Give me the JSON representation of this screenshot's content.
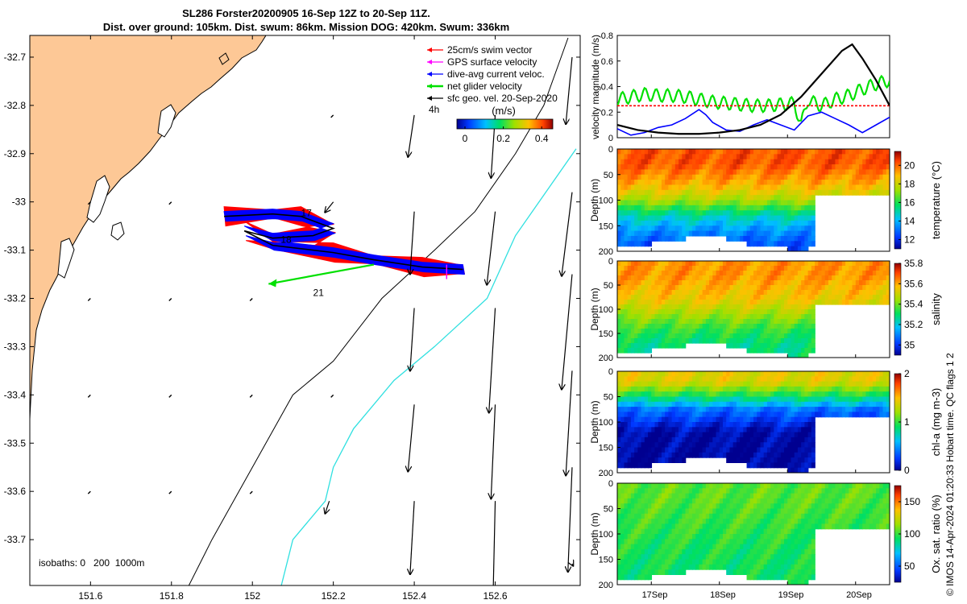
{
  "title": {
    "line1": "SL286 Forster20200905 16-Sep 12Z to 20-Sep 11Z.",
    "line2": "Dist. over ground: 105km. Dist. swum: 86km. Mission DOG: 420km. Swum: 336km"
  },
  "chart_data": [
    {
      "type": "map",
      "x_ticks": [
        "151.6",
        "151.8",
        "152",
        "152.2",
        "152.4",
        "152.6"
      ],
      "x_values": [
        151.6,
        151.8,
        152.0,
        152.2,
        152.4,
        152.6
      ],
      "y_ticks": [
        "-32.7",
        "-32.8",
        "-32.9",
        "-33",
        "-33.1",
        "-33.2",
        "-33.3",
        "-33.4",
        "-33.5",
        "-33.6",
        "-33.7"
      ],
      "y_values": [
        -32.7,
        -32.8,
        -32.9,
        -33.0,
        -33.1,
        -33.2,
        -33.3,
        -33.4,
        -33.5,
        -33.6,
        -33.7
      ],
      "xlim": [
        151.45,
        152.81
      ],
      "ylim": [
        -33.795,
        -32.655
      ],
      "legend": [
        {
          "label": "25cm/s swim vector",
          "color": "#ff0000"
        },
        {
          "label": "GPS surface velocity",
          "color": "#ff00ff"
        },
        {
          "label": "dive-avg current veloc.",
          "color": "#0000ff"
        },
        {
          "label": "net glider velocity",
          "color": "#00e000"
        },
        {
          "label": "sfc geo. vel. 20-Sep-2020",
          "color": "#000000"
        }
      ],
      "time_label": "4h",
      "colorbar": {
        "label": "(m/s)",
        "ticks": [
          "0",
          "0.2",
          "0.4"
        ],
        "values": [
          0,
          0.2,
          0.4
        ],
        "range": [
          0,
          0.5
        ]
      },
      "day_labels": [
        {
          "text": "17",
          "lon": 152.12,
          "lat": -33.03
        },
        {
          "text": "18",
          "lon": 152.07,
          "lat": -33.085
        },
        {
          "text": "21",
          "lon": 152.15,
          "lat": -33.195
        }
      ],
      "isobath_label": "isobaths: 0   200  1000m",
      "glider_track": [
        [
          151.93,
          -33.03
        ],
        [
          152.05,
          -33.025
        ],
        [
          152.12,
          -33.03
        ],
        [
          152.2,
          -33.055
        ],
        [
          152.15,
          -33.07
        ],
        [
          152.05,
          -33.075
        ],
        [
          151.98,
          -33.06
        ],
        [
          152.05,
          -33.09
        ],
        [
          152.2,
          -33.105
        ],
        [
          152.3,
          -33.12
        ],
        [
          152.42,
          -33.135
        ],
        [
          152.52,
          -33.14
        ]
      ],
      "isobath_200m": [
        [
          152.07,
          -33.8
        ],
        [
          152.1,
          -33.7
        ],
        [
          152.18,
          -33.62
        ],
        [
          152.2,
          -33.55
        ],
        [
          152.25,
          -33.47
        ],
        [
          152.35,
          -33.37
        ],
        [
          152.45,
          -33.3
        ],
        [
          152.58,
          -33.2
        ],
        [
          152.65,
          -33.07
        ],
        [
          152.8,
          -32.89
        ]
      ],
      "isobath_1000m": [
        [
          151.84,
          -33.8
        ],
        [
          151.9,
          -33.7
        ],
        [
          152.0,
          -33.55
        ],
        [
          152.1,
          -33.4
        ],
        [
          152.2,
          -33.33
        ],
        [
          152.32,
          -33.2
        ],
        [
          152.45,
          -33.1
        ],
        [
          152.55,
          -33.02
        ],
        [
          152.65,
          -32.9
        ],
        [
          152.72,
          -32.8
        ],
        [
          152.78,
          -32.66
        ]
      ],
      "sfc_vectors": [
        {
          "lon": 152.4,
          "lat": -32.82,
          "u": -0.03,
          "v": -0.2
        },
        {
          "lon": 152.6,
          "lat": -32.82,
          "u": -0.02,
          "v": -0.3
        },
        {
          "lon": 152.79,
          "lat": -32.7,
          "u": -0.03,
          "v": -0.32
        },
        {
          "lon": 152.4,
          "lat": -33.02,
          "u": -0.02,
          "v": -0.3
        },
        {
          "lon": 152.6,
          "lat": -33.02,
          "u": -0.04,
          "v": -0.35
        },
        {
          "lon": 152.79,
          "lat": -32.98,
          "u": -0.05,
          "v": -0.4
        },
        {
          "lon": 152.2,
          "lat": -33.0,
          "u": -0.04,
          "v": -0.05
        },
        {
          "lon": 152.4,
          "lat": -33.22,
          "u": -0.02,
          "v": -0.3
        },
        {
          "lon": 152.6,
          "lat": -33.22,
          "u": -0.03,
          "v": -0.5
        },
        {
          "lon": 152.79,
          "lat": -33.15,
          "u": -0.05,
          "v": -0.55
        },
        {
          "lon": 152.4,
          "lat": -33.42,
          "u": -0.03,
          "v": -0.32
        },
        {
          "lon": 152.6,
          "lat": -33.42,
          "u": -0.02,
          "v": -0.45
        },
        {
          "lon": 152.79,
          "lat": -33.35,
          "u": -0.03,
          "v": -0.5
        },
        {
          "lon": 152.4,
          "lat": -33.62,
          "u": -0.02,
          "v": -0.35
        },
        {
          "lon": 152.6,
          "lat": -33.62,
          "u": -0.01,
          "v": -0.45
        },
        {
          "lon": 152.79,
          "lat": -33.55,
          "u": -0.02,
          "v": -0.5
        },
        {
          "lon": 152.19,
          "lat": -33.62,
          "u": -0.02,
          "v": -0.06
        },
        {
          "lon": 152.79,
          "lat": -33.75,
          "u": 0.005,
          "v": -0.01
        }
      ],
      "stub_vectors": [
        [
          151.6,
          -33.0
        ],
        [
          151.8,
          -33.0
        ],
        [
          151.6,
          -33.2
        ],
        [
          151.8,
          -33.2
        ],
        [
          152.0,
          -33.2
        ],
        [
          151.6,
          -33.4
        ],
        [
          151.8,
          -33.4
        ],
        [
          152.0,
          -33.4
        ],
        [
          152.2,
          -33.4
        ],
        [
          151.6,
          -33.6
        ],
        [
          151.8,
          -33.6
        ],
        [
          152.0,
          -33.6
        ],
        [
          152.2,
          -32.82
        ]
      ]
    },
    {
      "type": "line",
      "ylabel": "velocity magnitude (m/s)",
      "y_ticks": [
        "0",
        "0.2",
        "0.4",
        "0.6",
        "0.8"
      ],
      "ylim": [
        0,
        0.8
      ],
      "xlim": [
        16.5,
        20.5
      ],
      "series": [
        {
          "color": "#00e000",
          "x": [
            16.5,
            16.7,
            16.9,
            17.1,
            17.3,
            17.5,
            17.7,
            17.9,
            18.1,
            18.3,
            18.5,
            18.7,
            18.9,
            19.1,
            19.2,
            19.3,
            19.4,
            19.5,
            19.7,
            19.9,
            20.1,
            20.3,
            20.5
          ],
          "values": [
            0.3,
            0.32,
            0.34,
            0.33,
            0.33,
            0.32,
            0.3,
            0.28,
            0.27,
            0.26,
            0.25,
            0.25,
            0.26,
            0.27,
            0.1,
            0.3,
            0.27,
            0.25,
            0.3,
            0.33,
            0.38,
            0.42,
            0.45
          ]
        },
        {
          "color": "#0000ff",
          "x": [
            16.5,
            16.7,
            16.9,
            17.1,
            17.3,
            17.5,
            17.7,
            17.8,
            17.9,
            18.1,
            18.3,
            18.5,
            18.7,
            18.9,
            19.1,
            19.3,
            19.5,
            19.7,
            19.9,
            20.1,
            20.3,
            20.5
          ],
          "values": [
            0.07,
            0.02,
            0.04,
            0.08,
            0.1,
            0.15,
            0.22,
            0.18,
            0.12,
            0.06,
            0.05,
            0.1,
            0.14,
            0.1,
            0.06,
            0.17,
            0.2,
            0.15,
            0.1,
            0.04,
            0.1,
            0.16
          ]
        },
        {
          "color": "#ff0000",
          "x": [
            16.5,
            20.5
          ],
          "values": [
            0.25,
            0.25
          ]
        },
        {
          "color": "#000000",
          "x": [
            16.5,
            16.8,
            17.1,
            17.4,
            17.7,
            18.0,
            18.3,
            18.6,
            18.9,
            19.2,
            19.5,
            19.8,
            19.95,
            20.1,
            20.3,
            20.5
          ],
          "values": [
            0.1,
            0.06,
            0.04,
            0.03,
            0.03,
            0.04,
            0.06,
            0.1,
            0.18,
            0.32,
            0.5,
            0.68,
            0.73,
            0.62,
            0.45,
            0.25
          ]
        }
      ]
    },
    {
      "type": "heatmap",
      "ylabel": "Depth (m)",
      "clabel": "temperature (°C)",
      "y_ticks": [
        "0",
        "50",
        "100",
        "150",
        "200"
      ],
      "c_ticks": [
        "12",
        "14",
        "16",
        "18",
        "20"
      ],
      "c_values": [
        12,
        14,
        16,
        18,
        20
      ],
      "clim": [
        11,
        21.5
      ],
      "layers": [
        {
          "depth": 30,
          "value": 20.2
        },
        {
          "depth": 70,
          "value": 19
        },
        {
          "depth": 100,
          "value": 17.5
        },
        {
          "depth": 130,
          "value": 15
        },
        {
          "depth": 160,
          "value": 13.5
        },
        {
          "depth": 190,
          "value": 12.5
        }
      ]
    },
    {
      "type": "heatmap",
      "ylabel": "Depth (m)",
      "clabel": "salinity",
      "y_ticks": [
        "0",
        "50",
        "100",
        "150",
        "200"
      ],
      "c_ticks": [
        "35",
        "35.2",
        "35.4",
        "35.6",
        "35.8"
      ],
      "c_values": [
        35,
        35.2,
        35.4,
        35.6,
        35.8
      ],
      "clim": [
        34.9,
        35.8
      ],
      "layers": [
        {
          "depth": 30,
          "value": 35.62
        },
        {
          "depth": 80,
          "value": 35.55
        },
        {
          "depth": 110,
          "value": 35.45
        },
        {
          "depth": 140,
          "value": 35.35
        },
        {
          "depth": 175,
          "value": 35.28
        }
      ]
    },
    {
      "type": "heatmap",
      "ylabel": "Depth (m)",
      "clabel": "chl-a (mg m-3)",
      "y_ticks": [
        "0",
        "50",
        "100",
        "150",
        "200"
      ],
      "c_ticks": [
        "0",
        "1",
        "2"
      ],
      "c_values": [
        0,
        1,
        2
      ],
      "clim": [
        0,
        2
      ],
      "layers": [
        {
          "depth": 20,
          "value": 1.4
        },
        {
          "depth": 50,
          "value": 0.9
        },
        {
          "depth": 75,
          "value": 0.4
        },
        {
          "depth": 120,
          "value": 0.05
        },
        {
          "depth": 170,
          "value": 0.03
        }
      ]
    },
    {
      "type": "heatmap",
      "ylabel": "Depth (m)",
      "clabel": "Ox. sat. ratio (%)",
      "y_ticks": [
        "0",
        "50",
        "100",
        "150",
        "200"
      ],
      "c_ticks": [
        "50",
        "100",
        "150"
      ],
      "c_values": [
        50,
        100,
        150
      ],
      "clim": [
        25,
        175
      ],
      "layers": [
        {
          "depth": 30,
          "value": 105
        },
        {
          "depth": 80,
          "value": 100
        },
        {
          "depth": 130,
          "value": 95
        },
        {
          "depth": 180,
          "value": 93
        }
      ]
    }
  ],
  "time_axis": {
    "labels": [
      "17Sep",
      "18Sep",
      "19Sep",
      "20Sep"
    ],
    "days": [
      17,
      18,
      19,
      20
    ]
  },
  "depth_profile": [
    [
      16.5,
      190
    ],
    [
      17.0,
      180
    ],
    [
      17.5,
      170
    ],
    [
      17.85,
      160
    ],
    [
      18.2,
      175
    ],
    [
      18.6,
      185
    ],
    [
      19.0,
      190
    ],
    [
      19.2,
      192
    ],
    [
      19.3,
      190
    ],
    [
      19.4,
      80
    ],
    [
      20.0,
      90
    ],
    [
      20.3,
      80
    ],
    [
      20.5,
      90
    ]
  ],
  "side_note": "© IMOS 14-Apr-2024 01:20:33 Hobart time. QC flags 1  2"
}
